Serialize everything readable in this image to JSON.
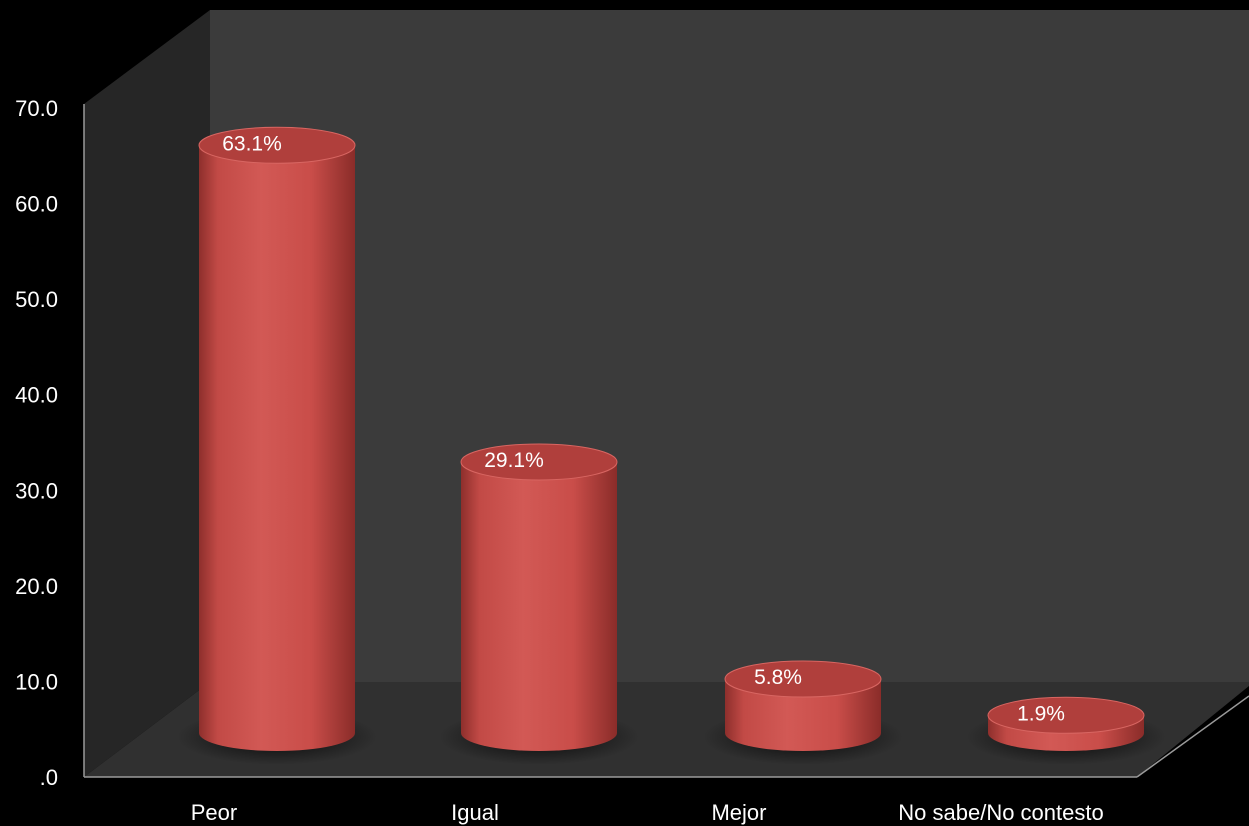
{
  "chart_data": {
    "type": "bar",
    "style": "3d-cylinder",
    "categories": [
      "Peor",
      "Igual",
      "Mejor",
      "No sabe/No contesto"
    ],
    "values": [
      63.1,
      29.1,
      5.8,
      1.9
    ],
    "data_labels": [
      "63.1%",
      "29.1%",
      "5.8%",
      "1.9%"
    ],
    "y_ticks": [
      ".0",
      "10.0",
      "20.0",
      "30.0",
      "40.0",
      "50.0",
      "60.0",
      "70.0"
    ],
    "ylim": [
      0,
      70
    ],
    "grid": false,
    "legend": "none",
    "title": "",
    "xlabel": "",
    "ylabel": "",
    "colors": {
      "background": "#000000",
      "back_wall": "#3b3b3b",
      "side_wall": "#262626",
      "floor": "#303030",
      "bar": "#c94a46",
      "bar_top": "#b03f3c",
      "text": "#ffffff"
    }
  }
}
